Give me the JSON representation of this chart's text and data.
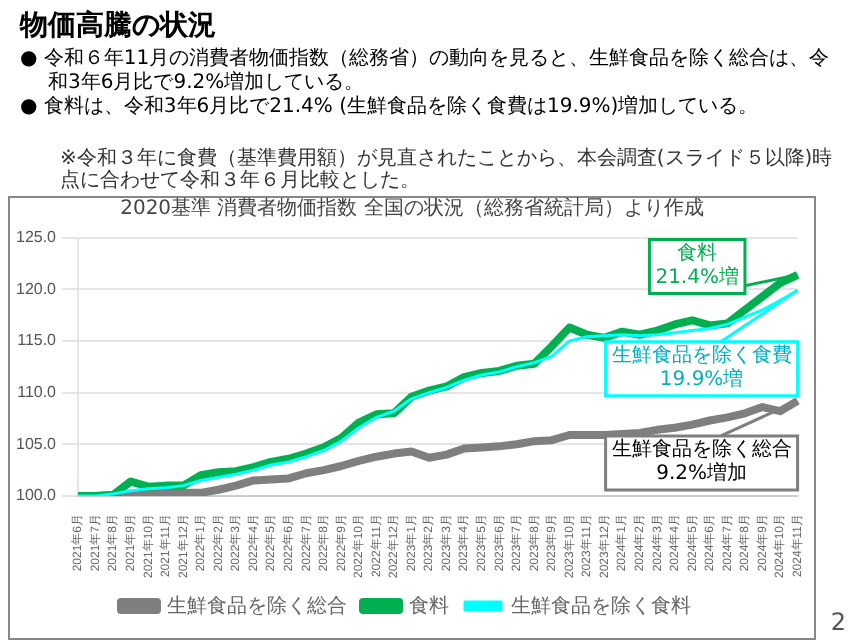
{
  "chart_data": {
    "type": "line",
    "title": "物価高騰の状況",
    "subtitle": "2020基準 消費者物価指数 全国の状況（総務省統計局）より作成",
    "categories": [
      "2021年6月",
      "2021年7月",
      "2021年8月",
      "2021年9月",
      "2021年10月",
      "2021年11月",
      "2021年12月",
      "2022年1月",
      "2022年2月",
      "2022年3月",
      "2022年4月",
      "2022年5月",
      "2022年6月",
      "2022年7月",
      "2022年8月",
      "2022年9月",
      "2022年10月",
      "2022年11月",
      "2022年12月",
      "2023年1月",
      "2023年2月",
      "2023年3月",
      "2023年4月",
      "2023年5月",
      "2023年6月",
      "2023年7月",
      "2023年8月",
      "2023年9月",
      "2023年10月",
      "2023年11月",
      "2023年12月",
      "2024年1月",
      "2024年2月",
      "2024年3月",
      "2024年4月",
      "2024年5月",
      "2024年6月",
      "2024年7月",
      "2024年8月",
      "2024年9月",
      "2024年10月",
      "2024年11月"
    ],
    "series": [
      {
        "name": "生鮮食品を除く総合",
        "color": "#7f7f7f",
        "values": [
          100,
          100,
          100.1,
          100.2,
          100.3,
          100.3,
          100.3,
          100.3,
          100.6,
          101.0,
          101.5,
          101.6,
          101.7,
          102.2,
          102.5,
          102.9,
          103.4,
          103.8,
          104.1,
          104.3,
          103.7,
          104.0,
          104.6,
          104.7,
          104.8,
          105.0,
          105.3,
          105.4,
          105.9,
          105.9,
          105.9,
          106.0,
          106.1,
          106.4,
          106.6,
          106.9,
          107.3,
          107.6,
          108.0,
          108.6,
          108.2,
          109.2
        ]
      },
      {
        "name": "食料",
        "color": "#00b050",
        "values": [
          100,
          100.0,
          100.1,
          101.4,
          100.9,
          101.0,
          101.0,
          102.0,
          102.3,
          102.4,
          102.8,
          103.3,
          103.6,
          104.1,
          104.7,
          105.6,
          107.1,
          107.9,
          108.0,
          109.6,
          110.2,
          110.6,
          111.5,
          111.9,
          112.1,
          112.6,
          112.8,
          114.5,
          116.3,
          115.6,
          115.3,
          115.9,
          115.6,
          116.0,
          116.6,
          117.0,
          116.5,
          116.7,
          118.0,
          119.3,
          120.6,
          121.4
        ]
      },
      {
        "name": "生鮮食品を除く食料",
        "color": "#00ffff",
        "values": [
          100,
          100.0,
          100.2,
          100.5,
          100.7,
          100.8,
          101.0,
          101.5,
          101.8,
          102.1,
          102.5,
          103.0,
          103.3,
          103.8,
          104.4,
          105.3,
          106.6,
          107.6,
          108.2,
          109.4,
          110.0,
          110.5,
          111.2,
          111.7,
          112.0,
          112.5,
          112.9,
          113.5,
          115.0,
          115.4,
          115.5,
          115.6,
          115.5,
          115.6,
          115.8,
          116.0,
          116.2,
          116.6,
          117.3,
          118.0,
          118.9,
          119.9
        ]
      }
    ],
    "ylim": [
      100,
      125
    ],
    "yticks": [
      {
        "value": 100,
        "label": "100.0"
      },
      {
        "value": 105,
        "label": "105.0"
      },
      {
        "value": 110,
        "label": "110.0"
      },
      {
        "value": 115,
        "label": "115.0"
      },
      {
        "value": 120,
        "label": "120.0"
      },
      {
        "value": 125,
        "label": "125.0"
      }
    ],
    "grid": "y",
    "legend": "bottom",
    "marker": "none",
    "line_style": "solid",
    "annotations": [
      "● 令和６年11月の消費者物価指数（総務省）の動向を見ると、生鮮食品を除く総合は、令和3年6月比で9.2%増加している。",
      "● 食料は、令和3年6月比で21.4% (生鮮食品を除く食費は19.9%)増加している。",
      "※令和３年に食費（基準費用額）が見直されたことから、本会調査(スライド５以降)時点に合わせて令和３年６月比較とした。",
      "2",
      {
        "text": "生鮮食品を除く総合\n9.2%増加",
        "x": "2024年11月",
        "y": 109.2
      },
      {
        "text": "食料\n21.4%増",
        "x": "2024年11月",
        "y": 121.4
      },
      {
        "text": "生鮮食品を除く食費\n19.9%増",
        "x": "2024年11月",
        "y": 119.9
      }
    ]
  }
}
